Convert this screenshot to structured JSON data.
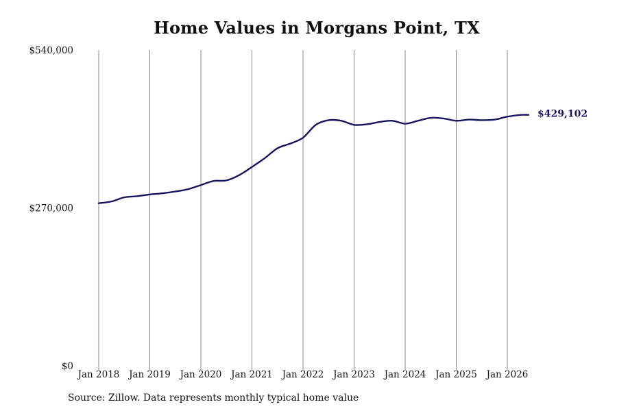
{
  "chart_data": {
    "type": "line",
    "title": "Home Values in Morgans Point, TX",
    "xlabel": "",
    "ylabel": "",
    "x_tick_labels": [
      "Jan 2018",
      "Jan 2019",
      "Jan 2020",
      "Jan 2021",
      "Jan 2022",
      "Jan 2023",
      "Jan 2024",
      "Jan 2025",
      "Jan 2026"
    ],
    "y_tick_labels": [
      "$0",
      "$270,000",
      "$540,000"
    ],
    "ylim": [
      0,
      540000
    ],
    "xlim": [
      "2018-01",
      "2026-06"
    ],
    "grid": "vertical",
    "line_color": "#15155e",
    "grid_color": "#888888",
    "end_label": "$429,102",
    "series": [
      {
        "x": [
          "2018-01",
          "2018-04",
          "2018-07",
          "2018-10",
          "2019-01",
          "2019-04",
          "2019-07",
          "2019-10",
          "2020-01",
          "2020-04",
          "2020-07",
          "2020-10",
          "2021-01",
          "2021-04",
          "2021-07",
          "2021-10",
          "2022-01",
          "2022-04",
          "2022-07",
          "2022-10",
          "2023-01",
          "2023-04",
          "2023-07",
          "2023-10",
          "2024-01",
          "2024-04",
          "2024-07",
          "2024-10",
          "2025-01",
          "2025-04",
          "2025-07",
          "2025-10",
          "2026-01",
          "2026-04",
          "2026-06"
        ],
        "values": [
          278000,
          281000,
          288000,
          290000,
          293000,
          295000,
          298000,
          302000,
          309000,
          316000,
          317000,
          326000,
          340000,
          355000,
          372000,
          380000,
          390000,
          412000,
          420000,
          419000,
          412000,
          413000,
          417000,
          419000,
          414000,
          419000,
          424000,
          423000,
          419000,
          421000,
          420000,
          421000,
          426000,
          429000,
          429102
        ]
      }
    ]
  },
  "source_note": "Source: Zillow. Data represents monthly typical home value"
}
